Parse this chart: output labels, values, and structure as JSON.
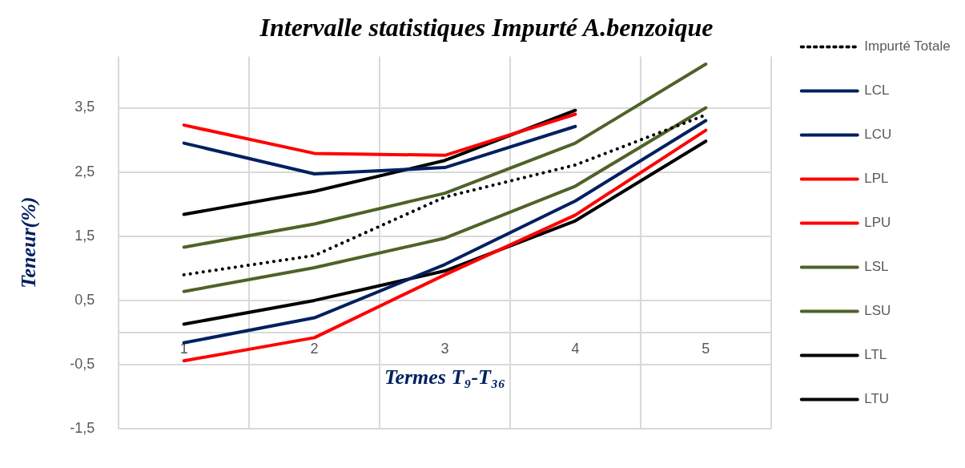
{
  "chart_data": {
    "type": "line",
    "title": "Intervalle statistiques Impurté A.benzoique",
    "xlabel": "Termes T₉-T₃₆",
    "ylabel": "Teneur(%)",
    "categories": [
      "1",
      "2",
      "3",
      "4",
      "5"
    ],
    "ylim": [
      -1.5,
      4.3
    ],
    "yticks": [
      {
        "value": -1.5,
        "label": "-1,5"
      },
      {
        "value": -0.5,
        "label": "-0,5"
      },
      {
        "value": 0.5,
        "label": "0,5"
      },
      {
        "value": 1.5,
        "label": "1,5"
      },
      {
        "value": 2.5,
        "label": "2,5"
      },
      {
        "value": 3.5,
        "label": "3,5"
      }
    ],
    "grid": true,
    "legend": "right",
    "marker": "none",
    "series": [
      {
        "name": "Impurté Totale",
        "color": "#000000",
        "line_style": "dotted",
        "values": [
          0.9,
          1.2,
          2.11,
          2.61,
          3.39
        ]
      },
      {
        "name": "LCL",
        "color": "#002060",
        "values": [
          -0.16,
          0.23,
          1.06,
          2.05,
          3.3
        ]
      },
      {
        "name": "LCU",
        "color": "#002060",
        "values": [
          2.95,
          2.47,
          2.57,
          3.21,
          null
        ]
      },
      {
        "name": "LPL",
        "color": "#ff0000",
        "values": [
          -0.44,
          -0.08,
          0.9,
          1.83,
          3.15
        ]
      },
      {
        "name": "LPU",
        "color": "#ff0000",
        "values": [
          3.23,
          2.79,
          2.76,
          3.4,
          null
        ]
      },
      {
        "name": "LSL",
        "color": "#4f6228",
        "values": [
          0.64,
          1.01,
          1.47,
          2.28,
          3.5
        ]
      },
      {
        "name": "LSU",
        "color": "#4f6228",
        "values": [
          1.33,
          1.69,
          2.17,
          2.95,
          4.18
        ]
      },
      {
        "name": "LTL",
        "color": "#000000",
        "values": [
          0.13,
          0.5,
          0.96,
          1.74,
          2.98
        ]
      },
      {
        "name": "LTU",
        "color": "#000000",
        "values": [
          1.84,
          2.2,
          2.68,
          3.46,
          null
        ]
      }
    ]
  }
}
